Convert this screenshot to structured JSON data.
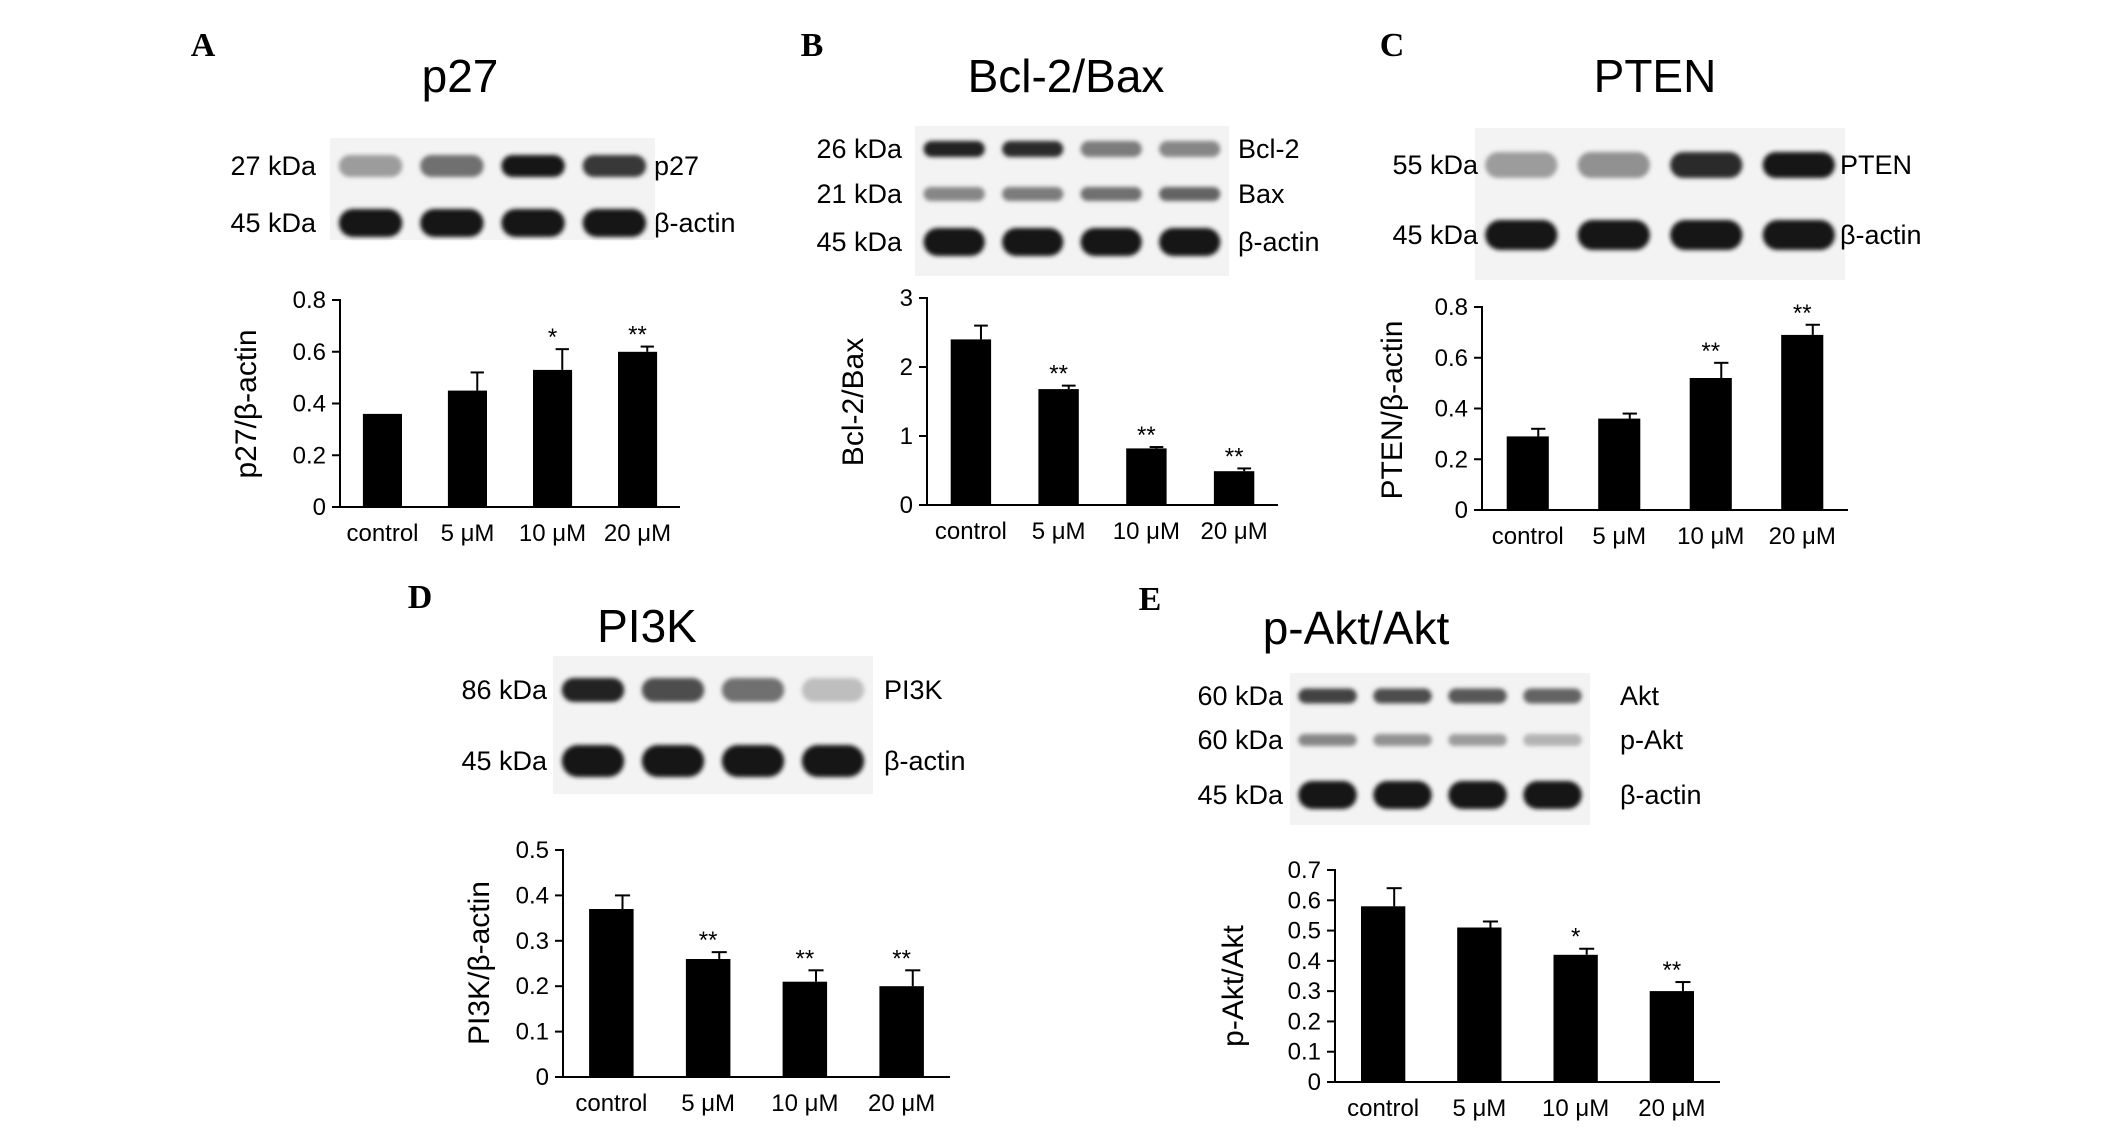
{
  "chart_data": [
    {
      "panel": "A",
      "type": "bar",
      "title": "p27",
      "blot": {
        "left_labels": [
          "27 kDa",
          "45 kDa"
        ],
        "right_labels": [
          "p27",
          "β-actin"
        ],
        "band_intensity": [
          [
            0.35,
            0.55,
            0.95,
            0.8
          ],
          [
            0.95,
            0.95,
            0.95,
            0.95
          ]
        ]
      },
      "categories": [
        "control",
        "5 μM",
        "10 μM",
        "20 μM"
      ],
      "values": [
        0.36,
        0.45,
        0.53,
        0.6
      ],
      "errors": [
        0.0,
        0.07,
        0.08,
        0.02
      ],
      "significance": [
        "",
        "",
        "*",
        "**"
      ],
      "ylabel": "p27/β-actin",
      "ylim": [
        0,
        0.8
      ],
      "yticks": [
        "0",
        "0.2",
        "0.4",
        "0.6",
        "0.8"
      ]
    },
    {
      "panel": "B",
      "type": "bar",
      "title": "Bcl-2/Bax",
      "blot": {
        "left_labels": [
          "26 kDa",
          "21 kDa",
          "45 kDa"
        ],
        "right_labels": [
          "Bcl-2",
          "Bax",
          "β-actin"
        ],
        "band_intensity": [
          [
            0.9,
            0.85,
            0.5,
            0.45
          ],
          [
            0.45,
            0.5,
            0.55,
            0.6
          ],
          [
            0.95,
            0.95,
            0.95,
            0.95
          ]
        ]
      },
      "categories": [
        "control",
        "5 μM",
        "10 μM",
        "20 μM"
      ],
      "values": [
        2.4,
        1.68,
        0.82,
        0.49
      ],
      "errors": [
        0.2,
        0.05,
        0.02,
        0.04
      ],
      "significance": [
        "",
        "**",
        "**",
        "**"
      ],
      "ylabel": "Bcl-2/Bax",
      "ylim": [
        0,
        3
      ],
      "yticks": [
        "0",
        "1",
        "2",
        "3"
      ]
    },
    {
      "panel": "C",
      "type": "bar",
      "title": "PTEN",
      "blot": {
        "left_labels": [
          "55 kDa",
          "45 kDa"
        ],
        "right_labels": [
          "PTEN",
          "β-actin"
        ],
        "band_intensity": [
          [
            0.35,
            0.4,
            0.85,
            0.95
          ],
          [
            0.95,
            0.95,
            0.95,
            0.95
          ]
        ]
      },
      "categories": [
        "control",
        "5 μM",
        "10 μM",
        "20 μM"
      ],
      "values": [
        0.29,
        0.36,
        0.52,
        0.69
      ],
      "errors": [
        0.03,
        0.02,
        0.06,
        0.04
      ],
      "significance": [
        "",
        "",
        "**",
        "**"
      ],
      "ylabel": "PTEN/β-actin",
      "ylim": [
        0,
        0.8
      ],
      "yticks": [
        "0",
        "0.2",
        "0.4",
        "0.6",
        "0.8"
      ]
    },
    {
      "panel": "D",
      "type": "bar",
      "title": "PI3K",
      "blot": {
        "left_labels": [
          "86 kDa",
          "45 kDa"
        ],
        "right_labels": [
          "PI3K",
          "β-actin"
        ],
        "band_intensity": [
          [
            0.9,
            0.7,
            0.55,
            0.2
          ],
          [
            0.95,
            0.95,
            0.95,
            0.95
          ]
        ]
      },
      "categories": [
        "control",
        "5 μM",
        "10 μM",
        "20 μM"
      ],
      "values": [
        0.37,
        0.26,
        0.21,
        0.2
      ],
      "errors": [
        0.03,
        0.015,
        0.025,
        0.035
      ],
      "significance": [
        "",
        "**",
        "**",
        "**"
      ],
      "ylabel": "PI3K/β-actin",
      "ylim": [
        0,
        0.5
      ],
      "yticks": [
        "0",
        "0.1",
        "0.2",
        "0.3",
        "0.4",
        "0.5"
      ]
    },
    {
      "panel": "E",
      "type": "bar",
      "title": "p-Akt/Akt",
      "blot": {
        "left_labels": [
          "60 kDa",
          "60 kDa",
          "45 kDa"
        ],
        "right_labels": [
          "Akt",
          "p-Akt",
          "β-actin"
        ],
        "band_intensity": [
          [
            0.75,
            0.7,
            0.65,
            0.6
          ],
          [
            0.45,
            0.4,
            0.35,
            0.25
          ],
          [
            0.95,
            0.95,
            0.95,
            0.95
          ]
        ]
      },
      "categories": [
        "control",
        "5 μM",
        "10 μM",
        "20 μM"
      ],
      "values": [
        0.58,
        0.51,
        0.42,
        0.3
      ],
      "errors": [
        0.06,
        0.02,
        0.02,
        0.03
      ],
      "significance": [
        "",
        "",
        "*",
        "**"
      ],
      "ylabel": "p-Akt/Akt",
      "ylim": [
        0,
        0.7
      ],
      "yticks": [
        "0",
        "0.1",
        "0.2",
        "0.3",
        "0.4",
        "0.5",
        "0.6",
        "0.7"
      ]
    }
  ]
}
